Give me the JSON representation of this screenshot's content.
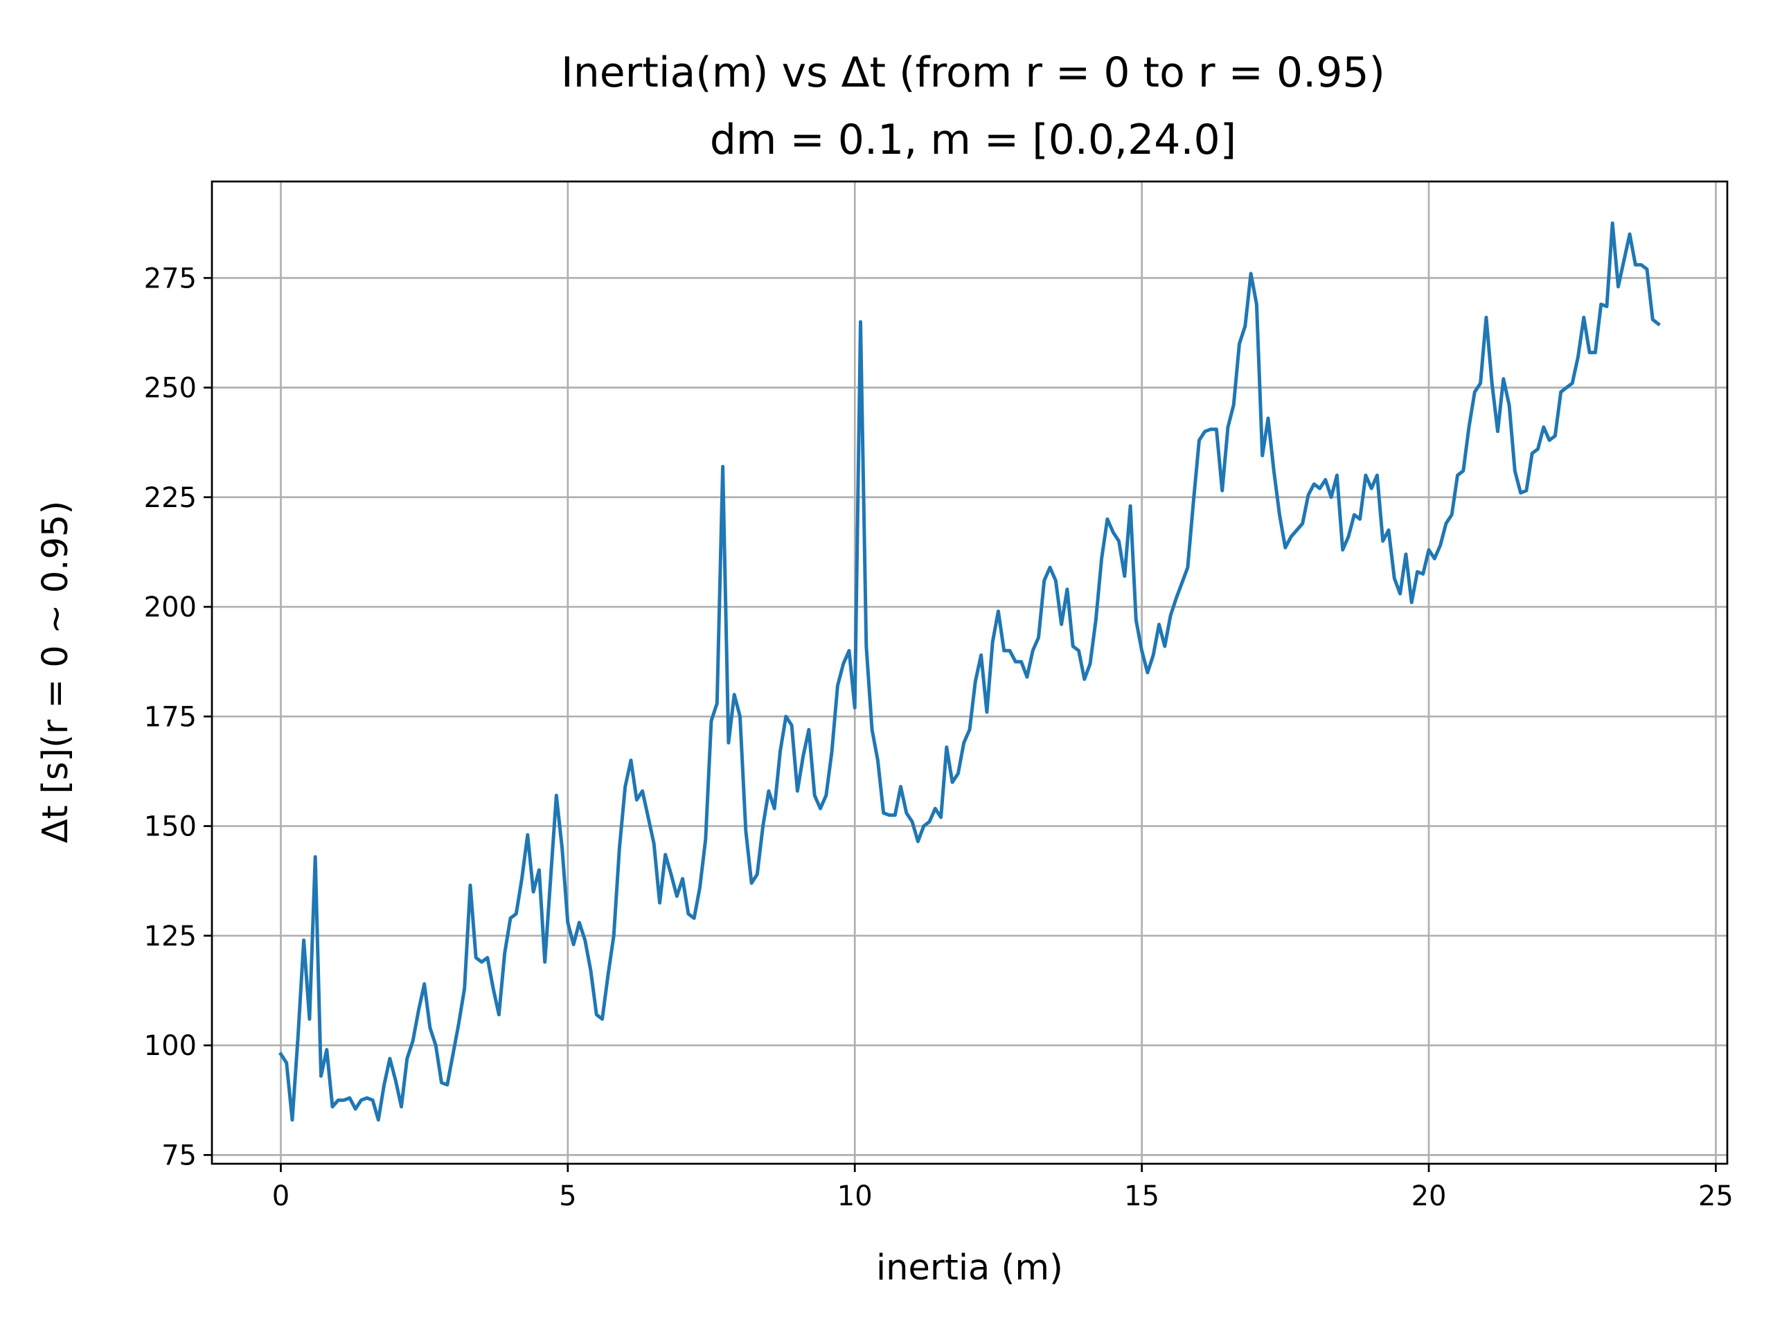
{
  "chart_data": {
    "type": "line",
    "title": [
      "Inertia(m) vs Δt (from r = 0 to r = 0.95)",
      "dm = 0.1, m = [0.0,24.0]"
    ],
    "xlabel": "inertia (m)",
    "ylabel": "Δt [s](r = 0 ~ 0.95)",
    "xlim": [
      -1.2,
      25.2
    ],
    "ylim": [
      73,
      297
    ],
    "xticks": [
      0,
      5,
      10,
      15,
      20,
      25
    ],
    "xtick_labels": [
      "0",
      "5",
      "10",
      "15",
      "20",
      "25"
    ],
    "yticks": [
      75,
      100,
      125,
      150,
      175,
      200,
      225,
      250,
      275
    ],
    "ytick_labels": [
      "75",
      "100",
      "125",
      "150",
      "175",
      "200",
      "225",
      "250",
      "275"
    ],
    "grid": true,
    "legend": "none",
    "series": [
      {
        "color": "#1f77b4",
        "x": [
          0.0,
          0.1,
          0.2,
          0.3,
          0.4,
          0.5,
          0.6,
          0.7,
          0.8,
          0.9,
          1.0,
          1.1,
          1.2,
          1.3,
          1.4,
          1.5,
          1.6,
          1.7,
          1.8,
          1.9,
          2.0,
          2.1,
          2.2,
          2.3,
          2.4,
          2.5,
          2.6,
          2.7,
          2.8,
          2.9,
          3.0,
          3.1,
          3.2,
          3.3,
          3.4,
          3.5,
          3.6,
          3.7,
          3.8,
          3.9,
          4.0,
          4.1,
          4.2,
          4.3,
          4.4,
          4.5,
          4.6,
          4.7,
          4.8,
          4.9,
          5.0,
          5.1,
          5.2,
          5.3,
          5.4,
          5.5,
          5.6,
          5.7,
          5.8,
          5.9,
          6.0,
          6.1,
          6.2,
          6.3,
          6.4,
          6.5,
          6.6,
          6.7,
          6.8,
          6.9,
          7.0,
          7.1,
          7.2,
          7.3,
          7.4,
          7.5,
          7.6,
          7.7,
          7.8,
          7.9,
          8.0,
          8.1,
          8.2,
          8.3,
          8.4,
          8.5,
          8.6,
          8.7,
          8.8,
          8.9,
          9.0,
          9.1,
          9.2,
          9.3,
          9.4,
          9.5,
          9.6,
          9.7,
          9.8,
          9.9,
          10.0,
          10.1,
          10.2,
          10.3,
          10.4,
          10.5,
          10.6,
          10.7,
          10.8,
          10.9,
          11.0,
          11.1,
          11.2,
          11.3,
          11.4,
          11.5,
          11.6,
          11.7,
          11.8,
          11.9,
          12.0,
          12.1,
          12.2,
          12.3,
          12.4,
          12.5,
          12.6,
          12.7,
          12.8,
          12.9,
          13.0,
          13.1,
          13.2,
          13.3,
          13.4,
          13.5,
          13.6,
          13.7,
          13.8,
          13.9,
          14.0,
          14.1,
          14.2,
          14.3,
          14.4,
          14.5,
          14.6,
          14.7,
          14.8,
          14.9,
          15.0,
          15.1,
          15.2,
          15.3,
          15.4,
          15.5,
          15.6,
          15.7,
          15.8,
          15.9,
          16.0,
          16.1,
          16.2,
          16.3,
          16.4,
          16.5,
          16.6,
          16.7,
          16.8,
          16.9,
          17.0,
          17.1,
          17.2,
          17.3,
          17.4,
          17.5,
          17.6,
          17.7,
          17.8,
          17.9,
          18.0,
          18.1,
          18.2,
          18.3,
          18.4,
          18.5,
          18.6,
          18.7,
          18.8,
          18.9,
          19.0,
          19.1,
          19.2,
          19.3,
          19.4,
          19.5,
          19.6,
          19.7,
          19.8,
          19.9,
          20.0,
          20.1,
          20.2,
          20.3,
          20.4,
          20.5,
          20.6,
          20.7,
          20.8,
          20.9,
          21.0,
          21.1,
          21.2,
          21.3,
          21.4,
          21.5,
          21.6,
          21.7,
          21.8,
          21.9,
          22.0,
          22.1,
          22.2,
          22.3,
          22.4,
          22.5,
          22.6,
          22.7,
          22.8,
          22.9,
          23.0,
          23.1,
          23.2,
          23.3,
          23.4,
          23.5,
          23.6,
          23.7,
          23.8,
          23.9,
          24.0
        ],
        "y": [
          98,
          96,
          83,
          102,
          124,
          106,
          143,
          93,
          99,
          86,
          87.5,
          87.5,
          88,
          85.5,
          87.5,
          88,
          87.5,
          83,
          91,
          97,
          92,
          86,
          97,
          101,
          108,
          114,
          104,
          100,
          91.5,
          91,
          98,
          105,
          113,
          136.5,
          120,
          119,
          120,
          113,
          107,
          121,
          129,
          130,
          138,
          148,
          135,
          140,
          119,
          138,
          157,
          145,
          128,
          123,
          128,
          124,
          117,
          107,
          106,
          116,
          125,
          145,
          159,
          165,
          156,
          158,
          152,
          146,
          132.5,
          143.5,
          139,
          134,
          138,
          130,
          129,
          136,
          147,
          174,
          178,
          232,
          169,
          180,
          175,
          149,
          137,
          139,
          150,
          158,
          154,
          167,
          175,
          173,
          158,
          166,
          172,
          157,
          154,
          157,
          167,
          182,
          187,
          190,
          177,
          265,
          191,
          172,
          165,
          153,
          152.5,
          152.5,
          159,
          153,
          151,
          146.5,
          150,
          151,
          154,
          152,
          168,
          160,
          162,
          169,
          172,
          183,
          189,
          176,
          192,
          199,
          190,
          190,
          187.5,
          187.5,
          184,
          190,
          193,
          206,
          209,
          206,
          196,
          204,
          191,
          190,
          183.5,
          187,
          197,
          211,
          220,
          217,
          215,
          207,
          223,
          197,
          190,
          185,
          189,
          196,
          191,
          198,
          202,
          205.5,
          209,
          224,
          238,
          240,
          240.5,
          240.5,
          226.5,
          241,
          246,
          260,
          264,
          276,
          269,
          234.5,
          243,
          231,
          221,
          213.5,
          216,
          217.5,
          219,
          225.5,
          228,
          227,
          229,
          225,
          230,
          213,
          216,
          221,
          220,
          230,
          227,
          230,
          215,
          217.5,
          206.5,
          203,
          212,
          201,
          208,
          207.5,
          213,
          211,
          214,
          219,
          221,
          230,
          231,
          241,
          249,
          251,
          266,
          251,
          240,
          252,
          246,
          231,
          226,
          226.5,
          235,
          236,
          241,
          238,
          239,
          249,
          250,
          251,
          257,
          266,
          258,
          258,
          269,
          268.5,
          287.5,
          273,
          279,
          285,
          278,
          278,
          277,
          265.5,
          264.5
        ]
      }
    ]
  }
}
